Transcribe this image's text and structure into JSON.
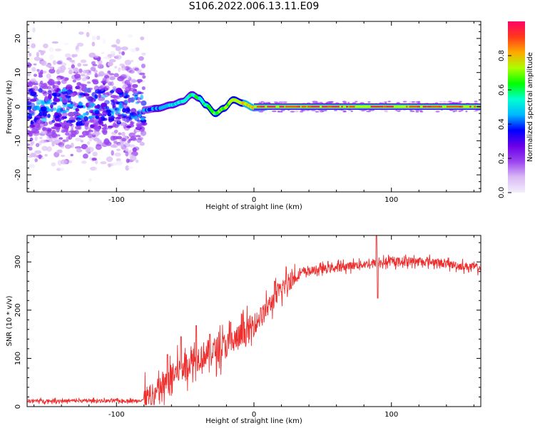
{
  "figure": {
    "title": "S106.2022.006.13.11.E09"
  },
  "chart_data": [
    {
      "type": "heatmap",
      "title": "",
      "xlabel": "Height of straight line (km)",
      "ylabel": "Frequency (Hz)",
      "xlim": [
        -165,
        165
      ],
      "ylim": [
        -25,
        25
      ],
      "xticks": [
        -100,
        0,
        100
      ],
      "yticks": [
        -20,
        -10,
        0,
        10,
        20
      ],
      "colorbar": {
        "label": "Normalized spectral amplitude",
        "range": [
          0,
          1
        ],
        "ticks": [
          0.0,
          0.2,
          0.4,
          0.6,
          0.8
        ],
        "colors": [
          "#f4eefc",
          "#d9b9f5",
          "#9a44ef",
          "#6a00e8",
          "#0000ff",
          "#00b8ff",
          "#00ffd0",
          "#00ff00",
          "#aaff00",
          "#ffaa00",
          "#ff3a1a",
          "#ff0066"
        ]
      },
      "features": {
        "noise_region_x": [
          -165,
          -80
        ],
        "noise_frequency_spread": 25,
        "ridge_oscillation_points": [
          {
            "x": -80,
            "y": -1
          },
          {
            "x": -70,
            "y": -0.5
          },
          {
            "x": -60,
            "y": 0.5
          },
          {
            "x": -52,
            "y": 1.5
          },
          {
            "x": -45,
            "y": 3.5
          },
          {
            "x": -40,
            "y": 2.5
          },
          {
            "x": -35,
            "y": 0.5
          },
          {
            "x": -28,
            "y": -2
          },
          {
            "x": -22,
            "y": -0.5
          },
          {
            "x": -15,
            "y": 2
          },
          {
            "x": -8,
            "y": 1
          },
          {
            "x": 0,
            "y": -0.3
          },
          {
            "x": 10,
            "y": 0
          }
        ],
        "steady_line_x": [
          0,
          165
        ],
        "steady_frequency": 0
      }
    },
    {
      "type": "line",
      "title": "",
      "xlabel": "Height of straight line (km)",
      "ylabel": "SNR (10 * v/v)",
      "xlim": [
        -165,
        165
      ],
      "ylim": [
        0,
        355
      ],
      "xticks": [
        -100,
        0,
        100
      ],
      "yticks": [
        0,
        100,
        200,
        300
      ],
      "series": [
        {
          "color": "#ee2d2d",
          "trend": [
            {
              "x": -165,
              "y": 12
            },
            {
              "x": -85,
              "y": 12
            },
            {
              "x": -75,
              "y": 18
            },
            {
              "x": -65,
              "y": 45
            },
            {
              "x": -55,
              "y": 75
            },
            {
              "x": -45,
              "y": 95
            },
            {
              "x": -35,
              "y": 110
            },
            {
              "x": -25,
              "y": 120
            },
            {
              "x": -15,
              "y": 135
            },
            {
              "x": -5,
              "y": 155
            },
            {
              "x": 5,
              "y": 185
            },
            {
              "x": 15,
              "y": 225
            },
            {
              "x": 25,
              "y": 260
            },
            {
              "x": 35,
              "y": 278
            },
            {
              "x": 50,
              "y": 285
            },
            {
              "x": 70,
              "y": 292
            },
            {
              "x": 90,
              "y": 298
            },
            {
              "x": 110,
              "y": 302
            },
            {
              "x": 130,
              "y": 300
            },
            {
              "x": 150,
              "y": 292
            },
            {
              "x": 165,
              "y": 288
            }
          ],
          "peaks": [
            {
              "x": -63,
              "y": 108
            },
            {
              "x": -53,
              "y": 145
            },
            {
              "x": -42,
              "y": 168
            },
            {
              "x": -32,
              "y": 150
            },
            {
              "x": -17,
              "y": 175
            },
            {
              "x": 5,
              "y": 205
            },
            {
              "x": 15,
              "y": 260
            },
            {
              "x": 89,
              "y": 355
            }
          ],
          "dips": [
            {
              "x": 90,
              "y": 225
            }
          ]
        }
      ]
    }
  ]
}
